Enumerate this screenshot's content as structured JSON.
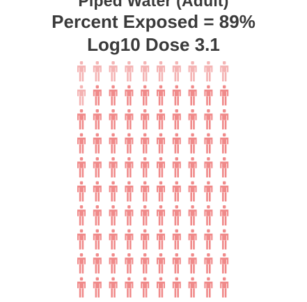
{
  "chart_data": {
    "type": "pictogram",
    "title": "Piped Water (Adult)",
    "subtitle": "Percent Exposed = 89%",
    "subtitle2": "Log10 Dose 3.1",
    "grid": {
      "rows": 10,
      "cols": 10
    },
    "total": 100,
    "exposed": 89,
    "colors": {
      "exposed": "#f08a8a",
      "unexposed": "#f4b3b3"
    },
    "icon": "person-icon"
  }
}
